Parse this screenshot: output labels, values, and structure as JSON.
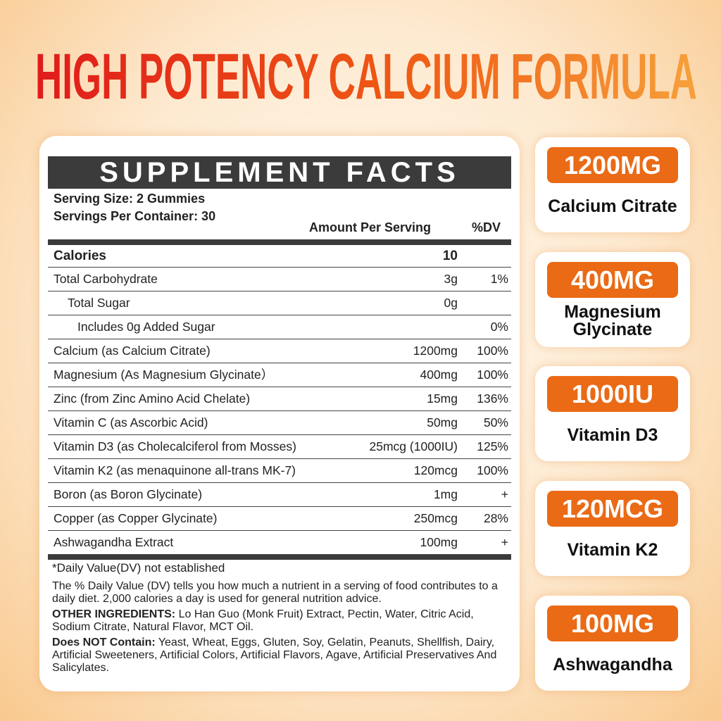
{
  "title": "HIGH POTENCY CALCIUM FORMULA",
  "colors": {
    "title_start": "#e01b1b",
    "title_end": "#f6a03a",
    "accent": "#ea6a15",
    "header_bg": "#3b3b3b"
  },
  "facts": {
    "header": "SUPPLEMENT FACTS",
    "serving_size": "Serving Size: 2 Gummies",
    "servings_per_container": "Servings Per Container: 30",
    "col_amount": "Amount Per Serving",
    "col_dv": "%DV",
    "rows": [
      {
        "name": "Calories",
        "amount": "10",
        "dv": ""
      },
      {
        "name": "Total Carbohydrate",
        "amount": "3g",
        "dv": "1%"
      },
      {
        "name": "Total Sugar",
        "amount": "0g",
        "dv": ""
      },
      {
        "name": "Includes 0g Added Sugar",
        "amount": "",
        "dv": "0%"
      },
      {
        "name": "Calcium (as Calcium Citrate)",
        "amount": "1200mg",
        "dv": "100%"
      },
      {
        "name": "Magnesium (As Magnesium Glycinate）",
        "amount": "400mg",
        "dv": "100%"
      },
      {
        "name": "Zinc (from Zinc Amino Acid Chelate)",
        "amount": "15mg",
        "dv": "136%"
      },
      {
        "name": "Vitamin C (as Ascorbic Acid)",
        "amount": "50mg",
        "dv": "50%"
      },
      {
        "name": "Vitamin D3 (as Cholecalciferol from Mosses)",
        "amount": "25mcg (1000IU)",
        "dv": "125%"
      },
      {
        "name": "Vitamin K2 (as menaquinone all-trans MK-7)",
        "amount": "120mcg",
        "dv": "100%"
      },
      {
        "name": "Boron (as Boron Glycinate)",
        "amount": "1mg",
        "dv": "+"
      },
      {
        "name": "Copper (as Copper Glycinate)",
        "amount": "250mcg",
        "dv": "28%"
      },
      {
        "name": "Ashwagandha Extract",
        "amount": "100mg",
        "dv": "+"
      }
    ],
    "dv_note": "*Daily Value(DV) not established",
    "dv_explain": "The % Daily Value (DV) tells you how much a nutrient in a serving of food contributes to a daily diet. 2,000 calories a day is used for general nutrition advice.",
    "other_label": "OTHER INGREDIENTS:",
    "other_text": " Lo Han Guo (Monk Fruit) Extract, Pectin, Water, Citric Acid, Sodium Citrate, Natural Flavor, MCT Oil.",
    "not_label": "Does NOT Contain:",
    "not_text": " Yeast, Wheat, Eggs, Gluten, Soy, Gelatin, Peanuts, Shellfish, Dairy, Artificial Sweeteners, Artificial Colors, Artificial Flavors, Agave, Artificial Preservatives And Salicylates."
  },
  "cards": [
    {
      "amount": "1200MG",
      "label": "Calcium Citrate"
    },
    {
      "amount": "400MG",
      "label": "Magnesium Glycinate"
    },
    {
      "amount": "1000IU",
      "label": "Vitamin D3"
    },
    {
      "amount": "120MCG",
      "label": "Vitamin K2"
    },
    {
      "amount": "100MG",
      "label": "Ashwagandha"
    }
  ]
}
